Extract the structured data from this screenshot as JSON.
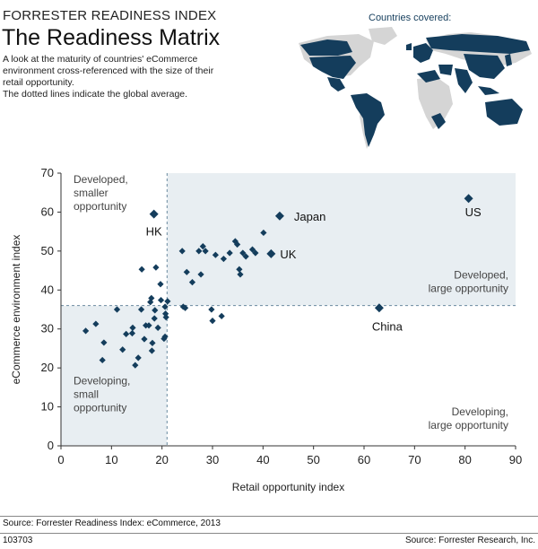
{
  "header": {
    "kicker": "FORRESTER READINESS INDEX",
    "title": "The Readiness Matrix",
    "description_lines": [
      "A look at the maturity of countries' eCommerce",
      "environment cross-referenced with the size of their",
      "retail opportunity.",
      "The dotted lines indicate the global average."
    ]
  },
  "map": {
    "label": "Countries covered:"
  },
  "colors": {
    "accent": "#143d5c",
    "shade": "#e8eef2",
    "land": "#d5d5d5"
  },
  "footer": {
    "source_left": "Source: Forrester Readiness Index: eCommerce, 2013",
    "code": "103703",
    "source_right": "Source: Forrester Research, Inc."
  },
  "chart_data": {
    "type": "scatter",
    "xlabel": "Retail opportunity index",
    "ylabel": "eCommerce environment index",
    "xlim": [
      0,
      90
    ],
    "ylim": [
      0,
      70
    ],
    "x_ticks": [
      0,
      10,
      20,
      30,
      40,
      50,
      60,
      70,
      80,
      90
    ],
    "y_ticks": [
      0,
      10,
      20,
      30,
      40,
      50,
      60,
      70
    ],
    "average": {
      "x": 21,
      "y": 36
    },
    "quadrant_labels": [
      {
        "text": "Developed, smaller opportunity",
        "lines": [
          "Developed,",
          "smaller",
          "opportunity"
        ],
        "position": "top-left"
      },
      {
        "text": "Developed, large opportunity",
        "lines": [
          "Developed,",
          "large opportunity"
        ],
        "position": "right-above-average"
      },
      {
        "text": "Developing, small opportunity",
        "lines": [
          "Developing,",
          "small",
          "opportunity"
        ],
        "position": "bottom-left"
      },
      {
        "text": "Developing, large opportunity",
        "lines": [
          "Developing,",
          "large opportunity"
        ],
        "position": "bottom-right"
      }
    ],
    "labeled_points": [
      {
        "label": "US",
        "x": 80.7,
        "y": 63.5
      },
      {
        "label": "Japan",
        "x": 43.3,
        "y": 59.0
      },
      {
        "label": "HK",
        "x": 18.4,
        "y": 59.5
      },
      {
        "label": "UK",
        "x": 41.6,
        "y": 49.3
      },
      {
        "label": "China",
        "x": 63.0,
        "y": 35.4
      }
    ],
    "points": [
      [
        4.9,
        29.5
      ],
      [
        6.9,
        31.3
      ],
      [
        8.2,
        22.0
      ],
      [
        8.5,
        26.5
      ],
      [
        11.1,
        35.0
      ],
      [
        12.2,
        24.7
      ],
      [
        12.9,
        28.7
      ],
      [
        14.1,
        28.9
      ],
      [
        14.2,
        30.3
      ],
      [
        14.7,
        20.7
      ],
      [
        15.3,
        22.6
      ],
      [
        15.9,
        35.0
      ],
      [
        16.0,
        45.3
      ],
      [
        16.5,
        27.4
      ],
      [
        16.8,
        30.9
      ],
      [
        17.4,
        30.9
      ],
      [
        17.7,
        36.9
      ],
      [
        17.9,
        37.9
      ],
      [
        18.0,
        24.4
      ],
      [
        18.1,
        26.4
      ],
      [
        18.5,
        32.7
      ],
      [
        18.8,
        45.8
      ],
      [
        18.6,
        34.8
      ],
      [
        19.2,
        30.3
      ],
      [
        19.7,
        41.5
      ],
      [
        19.8,
        37.4
      ],
      [
        20.4,
        27.5
      ],
      [
        20.6,
        35.7
      ],
      [
        20.6,
        28.0
      ],
      [
        20.7,
        33.9
      ],
      [
        20.8,
        33.0
      ],
      [
        21.1,
        37.1
      ],
      [
        24.0,
        50.0
      ],
      [
        24.2,
        35.7
      ],
      [
        24.6,
        35.4
      ],
      [
        24.9,
        44.6
      ],
      [
        26.0,
        42.0
      ],
      [
        27.3,
        50.0
      ],
      [
        27.7,
        44.0
      ],
      [
        28.1,
        51.2
      ],
      [
        28.6,
        50.0
      ],
      [
        29.8,
        35.0
      ],
      [
        30.0,
        32.1
      ],
      [
        30.6,
        49.0
      ],
      [
        31.8,
        33.3
      ],
      [
        32.2,
        48.0
      ],
      [
        33.4,
        49.5
      ],
      [
        34.5,
        52.5
      ],
      [
        34.9,
        51.7
      ],
      [
        35.3,
        45.3
      ],
      [
        35.5,
        44.0
      ],
      [
        36.0,
        49.5
      ],
      [
        36.6,
        48.6
      ],
      [
        37.9,
        50.4
      ],
      [
        38.5,
        49.5
      ],
      [
        40.1,
        54.7
      ]
    ]
  }
}
